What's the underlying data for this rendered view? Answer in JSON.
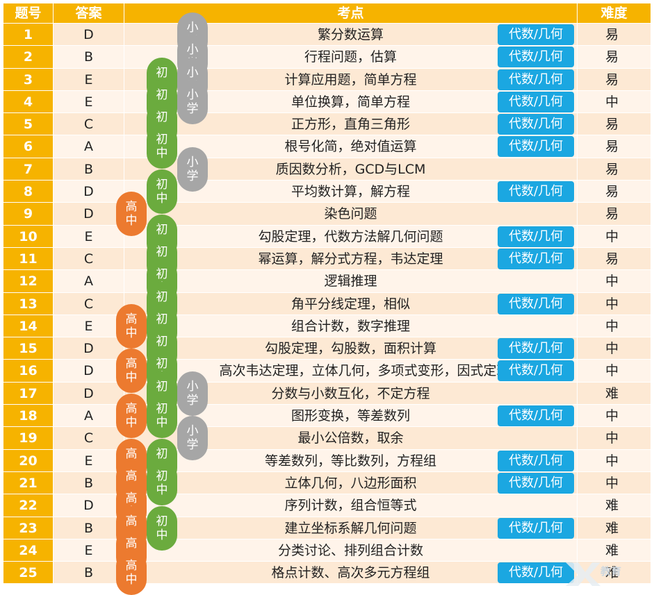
{
  "header": {
    "num": "题号",
    "answer": "答案",
    "topic": "考点",
    "difficulty": "难度"
  },
  "levels": {
    "high": [
      "高",
      "中"
    ],
    "mid": [
      "初",
      "中"
    ],
    "low": [
      "小",
      "学"
    ]
  },
  "rows": [
    {
      "num": "1",
      "answer": "D",
      "topic": "繁分数运算",
      "tag": "代数/几何",
      "difficulty": "易",
      "levels": [
        "low"
      ]
    },
    {
      "num": "2",
      "answer": "B",
      "topic": "行程问题，估算",
      "tag": "代数/几何",
      "difficulty": "易",
      "levels": [
        "low"
      ]
    },
    {
      "num": "3",
      "answer": "E",
      "topic": "计算应用题，简单方程",
      "tag": "代数/几何",
      "difficulty": "易",
      "levels": [
        "mid",
        "low"
      ]
    },
    {
      "num": "4",
      "answer": "E",
      "topic": "单位换算，简单方程",
      "tag": "代数/几何",
      "difficulty": "中",
      "levels": [
        "mid",
        "low"
      ]
    },
    {
      "num": "5",
      "answer": "C",
      "topic": "正方形，直角三角形",
      "tag": "代数/几何",
      "difficulty": "易",
      "levels": [
        "mid"
      ]
    },
    {
      "num": "6",
      "answer": "A",
      "topic": "根号化简，绝对值运算",
      "tag": "代数/几何",
      "difficulty": "易",
      "levels": [
        "mid"
      ]
    },
    {
      "num": "7",
      "answer": "B",
      "topic": "质因数分析，GCD与LCM",
      "tag": "",
      "difficulty": "易",
      "levels": [
        "low"
      ]
    },
    {
      "num": "8",
      "answer": "D",
      "topic": "平均数计算，解方程",
      "tag": "代数/几何",
      "difficulty": "易",
      "levels": [
        "mid"
      ]
    },
    {
      "num": "9",
      "answer": "D",
      "topic": "染色问题",
      "tag": "",
      "difficulty": "易",
      "levels": [
        "high"
      ]
    },
    {
      "num": "10",
      "answer": "E",
      "topic": "勾股定理，代数方法解几何问题",
      "tag": "代数/几何",
      "difficulty": "中",
      "levels": [
        "mid"
      ]
    },
    {
      "num": "11",
      "answer": "C",
      "topic": "幂运算，解分式方程，韦达定理",
      "tag": "代数/几何",
      "difficulty": "易",
      "levels": [
        "mid"
      ]
    },
    {
      "num": "12",
      "answer": "A",
      "topic": "逻辑推理",
      "tag": "",
      "difficulty": "中",
      "levels": [
        "mid"
      ]
    },
    {
      "num": "13",
      "answer": "C",
      "topic": "角平分线定理，相似",
      "tag": "代数/几何",
      "difficulty": "中",
      "levels": [
        "mid"
      ]
    },
    {
      "num": "14",
      "answer": "E",
      "topic": "组合计数，数字推理",
      "tag": "",
      "difficulty": "中",
      "levels": [
        "high",
        "mid"
      ]
    },
    {
      "num": "15",
      "answer": "D",
      "topic": "勾股定理，勾股数，面积计算",
      "tag": "代数/几何",
      "difficulty": "中",
      "levels": [
        "mid"
      ]
    },
    {
      "num": "16",
      "answer": "D",
      "topic": "高次韦达定理，立体几何，多项式变形，因式定理",
      "tag": "代数/几何",
      "difficulty": "中",
      "levels": [
        "high",
        "mid"
      ]
    },
    {
      "num": "17",
      "answer": "D",
      "topic": "分数与小数互化，不定方程",
      "tag": "",
      "difficulty": "难",
      "levels": [
        "mid",
        "low"
      ]
    },
    {
      "num": "18",
      "answer": "A",
      "topic": "图形变换，等差数列",
      "tag": "代数/几何",
      "difficulty": "中",
      "levels": [
        "high",
        "mid"
      ]
    },
    {
      "num": "19",
      "answer": "C",
      "topic": "最小公倍数，取余",
      "tag": "",
      "difficulty": "中",
      "levels": [
        "low"
      ]
    },
    {
      "num": "20",
      "answer": "E",
      "topic": "等差数列，等比数列，方程组",
      "tag": "代数/几何",
      "difficulty": "中",
      "levels": [
        "high",
        "mid"
      ]
    },
    {
      "num": "21",
      "answer": "B",
      "topic": "立体几何，八边形面积",
      "tag": "代数/几何",
      "difficulty": "中",
      "levels": [
        "high",
        "mid"
      ]
    },
    {
      "num": "22",
      "answer": "D",
      "topic": "序列计数，组合恒等式",
      "tag": "",
      "difficulty": "难",
      "levels": [
        "high"
      ]
    },
    {
      "num": "23",
      "answer": "B",
      "topic": "建立坐标系解几何问题",
      "tag": "代数/几何",
      "difficulty": "难",
      "levels": [
        "high",
        "mid"
      ]
    },
    {
      "num": "24",
      "answer": "E",
      "topic": "分类讨论、排列组合计数",
      "tag": "",
      "difficulty": "难",
      "levels": [
        "high"
      ]
    },
    {
      "num": "25",
      "answer": "B",
      "topic": "格点计数、高次多元方程组",
      "tag": "代数/几何",
      "difficulty": "难",
      "levels": [
        "high"
      ]
    }
  ],
  "watermark": {
    "text": "教育",
    "icon": "x-logo-icon"
  }
}
